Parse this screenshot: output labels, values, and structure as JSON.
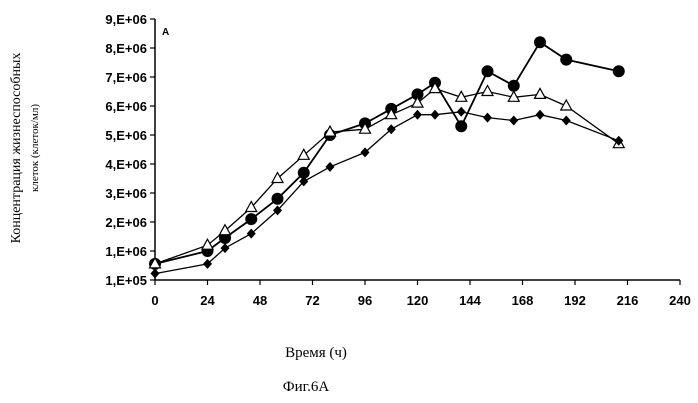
{
  "chart_data": {
    "type": "line",
    "panel_label": "A",
    "title": "",
    "xlabel": "Время (ч)",
    "ylabel_line1": "Концентрация жизнеспособных",
    "ylabel_line2": "клеток (клеток/мл)",
    "caption": "Фиг.6А",
    "xlim": [
      0,
      240
    ],
    "x_ticks": [
      0,
      24,
      48,
      72,
      96,
      120,
      144,
      168,
      192,
      216,
      240
    ],
    "y_ticks": [
      {
        "value": 100000,
        "label": "1,E+05"
      },
      {
        "value": 1000000,
        "label": "1,E+06"
      },
      {
        "value": 2000000,
        "label": "2,E+06"
      },
      {
        "value": 3000000,
        "label": "3,E+06"
      },
      {
        "value": 4000000,
        "label": "4,E+06"
      },
      {
        "value": 5000000,
        "label": "5,E+06"
      },
      {
        "value": 6000000,
        "label": "6,E+06"
      },
      {
        "value": 7000000,
        "label": "7,E+06"
      },
      {
        "value": 8000000,
        "label": "8,E+06"
      },
      {
        "value": 9000000,
        "label": "9,E+06"
      }
    ],
    "grid": false,
    "legend": "none",
    "series": [
      {
        "marker": "circle",
        "x": [
          0,
          24,
          32,
          44,
          56,
          68,
          80,
          96,
          108,
          120,
          128,
          140,
          152,
          164,
          176,
          188,
          212
        ],
        "y": [
          600000,
          1000000,
          1450000,
          2100000,
          2800000,
          3700000,
          5000000,
          5400000,
          5900000,
          6400000,
          6800000,
          5300000,
          7200000,
          6700000,
          8200000,
          7600000,
          7200000
        ]
      },
      {
        "marker": "triangle",
        "x": [
          0,
          24,
          32,
          44,
          56,
          68,
          80,
          96,
          108,
          120,
          128,
          140,
          152,
          164,
          176,
          188,
          212
        ],
        "y": [
          600000,
          1200000,
          1700000,
          2500000,
          3500000,
          4300000,
          5100000,
          5200000,
          5700000,
          6100000,
          6600000,
          6300000,
          6500000,
          6300000,
          6400000,
          6000000,
          4700000
        ]
      },
      {
        "marker": "diamond",
        "x": [
          0,
          24,
          32,
          44,
          56,
          68,
          80,
          96,
          108,
          120,
          128,
          140,
          152,
          164,
          176,
          188,
          212
        ],
        "y": [
          300000,
          600000,
          1100000,
          1600000,
          2400000,
          3400000,
          3900000,
          4400000,
          5200000,
          5700000,
          5700000,
          5800000,
          5600000,
          5500000,
          5700000,
          5500000,
          4800000
        ]
      }
    ]
  }
}
